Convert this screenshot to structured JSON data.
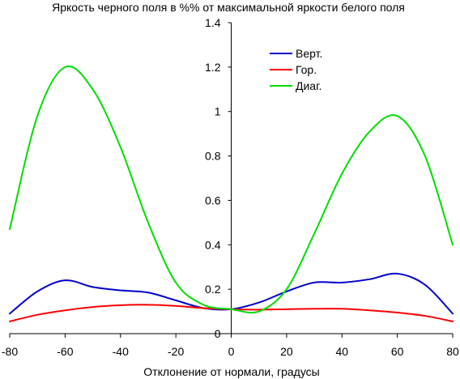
{
  "chart_data": {
    "type": "line",
    "title": "Яркость черного поля в %% от максимальной яркости белого поля",
    "xlabel": "Отклонение от нормали, градусы",
    "ylabel": "",
    "xlim": [
      -80,
      80
    ],
    "ylim": [
      0,
      1.4
    ],
    "x_ticks": [
      -80,
      -60,
      -40,
      -20,
      0,
      20,
      40,
      60,
      80
    ],
    "y_ticks": [
      0,
      0.2,
      0.4,
      0.6,
      0.8,
      1,
      1.2,
      1.4
    ],
    "grid": false,
    "legend_position": "top-right",
    "series": [
      {
        "name": "Верт.",
        "color": "#0000cc",
        "x": [
          -80,
          -70,
          -60,
          -50,
          -40,
          -30,
          -20,
          -10,
          0,
          10,
          20,
          30,
          40,
          50,
          60,
          70,
          80
        ],
        "y": [
          0.09,
          0.19,
          0.24,
          0.21,
          0.195,
          0.185,
          0.15,
          0.115,
          0.11,
          0.14,
          0.19,
          0.23,
          0.23,
          0.245,
          0.27,
          0.22,
          0.09
        ]
      },
      {
        "name": "Гор.",
        "color": "#ff0000",
        "x": [
          -80,
          -70,
          -60,
          -50,
          -40,
          -30,
          -20,
          -10,
          0,
          10,
          20,
          30,
          40,
          50,
          60,
          70,
          80
        ],
        "y": [
          0.055,
          0.085,
          0.105,
          0.12,
          0.128,
          0.13,
          0.125,
          0.115,
          0.11,
          0.108,
          0.11,
          0.112,
          0.112,
          0.105,
          0.095,
          0.08,
          0.055
        ]
      },
      {
        "name": "Диаг.",
        "color": "#00dd00",
        "x": [
          -80,
          -70,
          -60,
          -50,
          -40,
          -30,
          -20,
          -10,
          0,
          10,
          20,
          30,
          40,
          50,
          60,
          70,
          80
        ],
        "y": [
          0.47,
          0.98,
          1.2,
          1.1,
          0.84,
          0.5,
          0.23,
          0.13,
          0.11,
          0.1,
          0.2,
          0.45,
          0.72,
          0.91,
          0.98,
          0.8,
          0.4
        ]
      }
    ]
  }
}
